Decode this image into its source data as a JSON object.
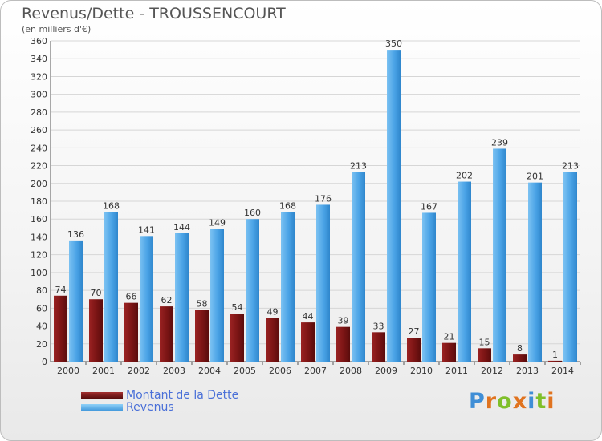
{
  "title": "Revenus/Dette - TROUSSENCOURT",
  "subtitle": "(en milliers d'€)",
  "logo": {
    "text": "Proxiti"
  },
  "legend": [
    {
      "label": "Montant de la Dette",
      "color": "#7a1414"
    },
    {
      "label": "Revenus",
      "color": "#4aa3e6"
    }
  ],
  "chart_data": {
    "type": "bar",
    "title": "Revenus/Dette - TROUSSENCOURT",
    "subtitle": "(en milliers d'€)",
    "categories": [
      "2000",
      "2001",
      "2002",
      "2003",
      "2004",
      "2005",
      "2006",
      "2007",
      "2008",
      "2009",
      "2010",
      "2011",
      "2012",
      "2013",
      "2014"
    ],
    "series": [
      {
        "name": "Montant de la Dette",
        "color": "#7a1414",
        "values": [
          74,
          70,
          66,
          62,
          58,
          54,
          49,
          44,
          39,
          33,
          27,
          21,
          15,
          8,
          1
        ]
      },
      {
        "name": "Revenus",
        "color": "#4aa3e6",
        "values": [
          136,
          168,
          141,
          144,
          149,
          160,
          168,
          176,
          213,
          350,
          167,
          202,
          239,
          201,
          213
        ]
      }
    ],
    "ylim": [
      0,
      360
    ],
    "yticks": [
      0,
      20,
      40,
      60,
      80,
      100,
      120,
      140,
      160,
      180,
      200,
      220,
      240,
      260,
      280,
      300,
      320,
      340,
      360
    ],
    "grid": true,
    "legend_position": "bottom-left"
  }
}
